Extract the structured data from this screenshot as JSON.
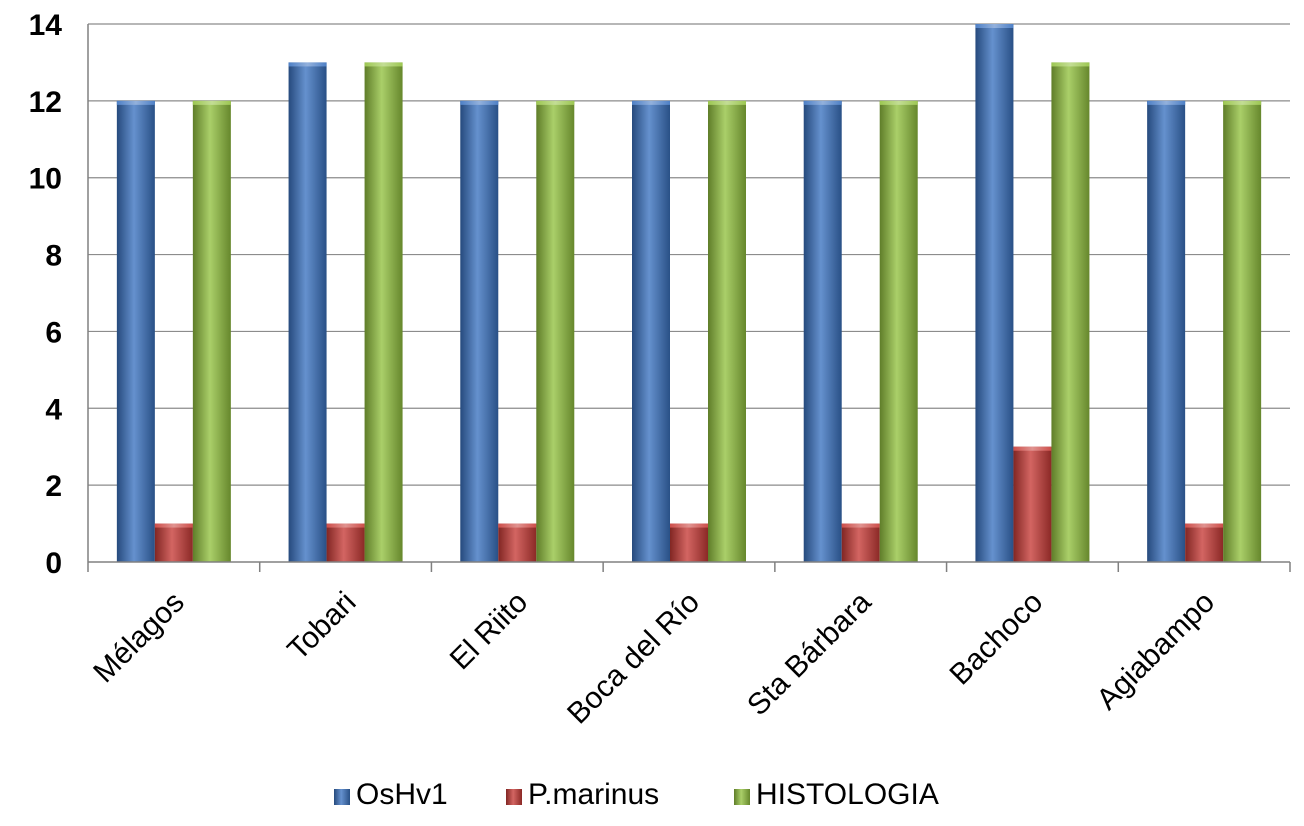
{
  "chart_data": {
    "type": "bar",
    "categories": [
      "Mélagos",
      "Tobari",
      "El Riito",
      "Boca del Río",
      "Sta Bárbara",
      "Bachoco",
      "Agiabampo"
    ],
    "series": [
      {
        "name": "OsHv1",
        "values": [
          12,
          13,
          12,
          12,
          12,
          14,
          12
        ],
        "color": "#3a72c0"
      },
      {
        "name": "P.marinus",
        "values": [
          1,
          1,
          1,
          1,
          1,
          3,
          1
        ],
        "color": "#c73a36"
      },
      {
        "name": "HISTOLOGIA",
        "values": [
          12,
          13,
          12,
          12,
          12,
          13,
          12
        ],
        "color": "#92c13f"
      }
    ],
    "ylim": [
      0,
      14
    ],
    "yticks": [
      "0",
      "2",
      "4",
      "6",
      "8",
      "10",
      "12",
      "14"
    ],
    "grid": true,
    "legend": "bottom",
    "title": "",
    "xlabel": "",
    "ylabel": ""
  }
}
